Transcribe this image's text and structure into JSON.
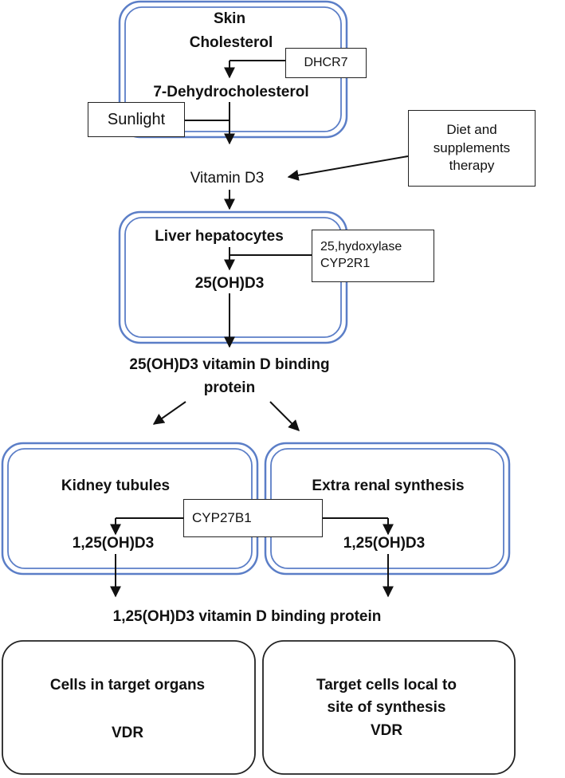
{
  "skin": {
    "line1": "Skin",
    "line2": "Cholesterol",
    "product": "7-Dehydrocholesterol",
    "enzyme": "DHCR7"
  },
  "sunlight": "Sunlight",
  "vitamin_d3": "Vitamin D3",
  "diet": {
    "line1": "Diet and",
    "line2": "supplements",
    "line3": "therapy"
  },
  "liver": {
    "title": "Liver hepatocytes",
    "product": "25(OH)D3",
    "enzyme_line1": "25,hydoxylase",
    "enzyme_line2": "CYP2R1"
  },
  "binding_25": {
    "line1": "25(OH)D3 vitamin D binding",
    "line2": "protein"
  },
  "kidney": {
    "title": "Kidney tubules",
    "product": "1,25(OH)D3"
  },
  "extra_renal": {
    "title": "Extra renal synthesis",
    "product": "1,25(OH)D3"
  },
  "enzyme_cyp27b1": "CYP27B1",
  "binding_125": "1,25(OH)D3 vitamin D binding protein",
  "target_organs": {
    "line1": "Cells in target organs",
    "line2": "VDR"
  },
  "local_cells": {
    "line1": "Target cells local to",
    "line2": "site of synthesis",
    "line3": "VDR"
  },
  "colors": {
    "outline": "#5b7ec7",
    "arrow": "#111111",
    "text": "#111111"
  }
}
